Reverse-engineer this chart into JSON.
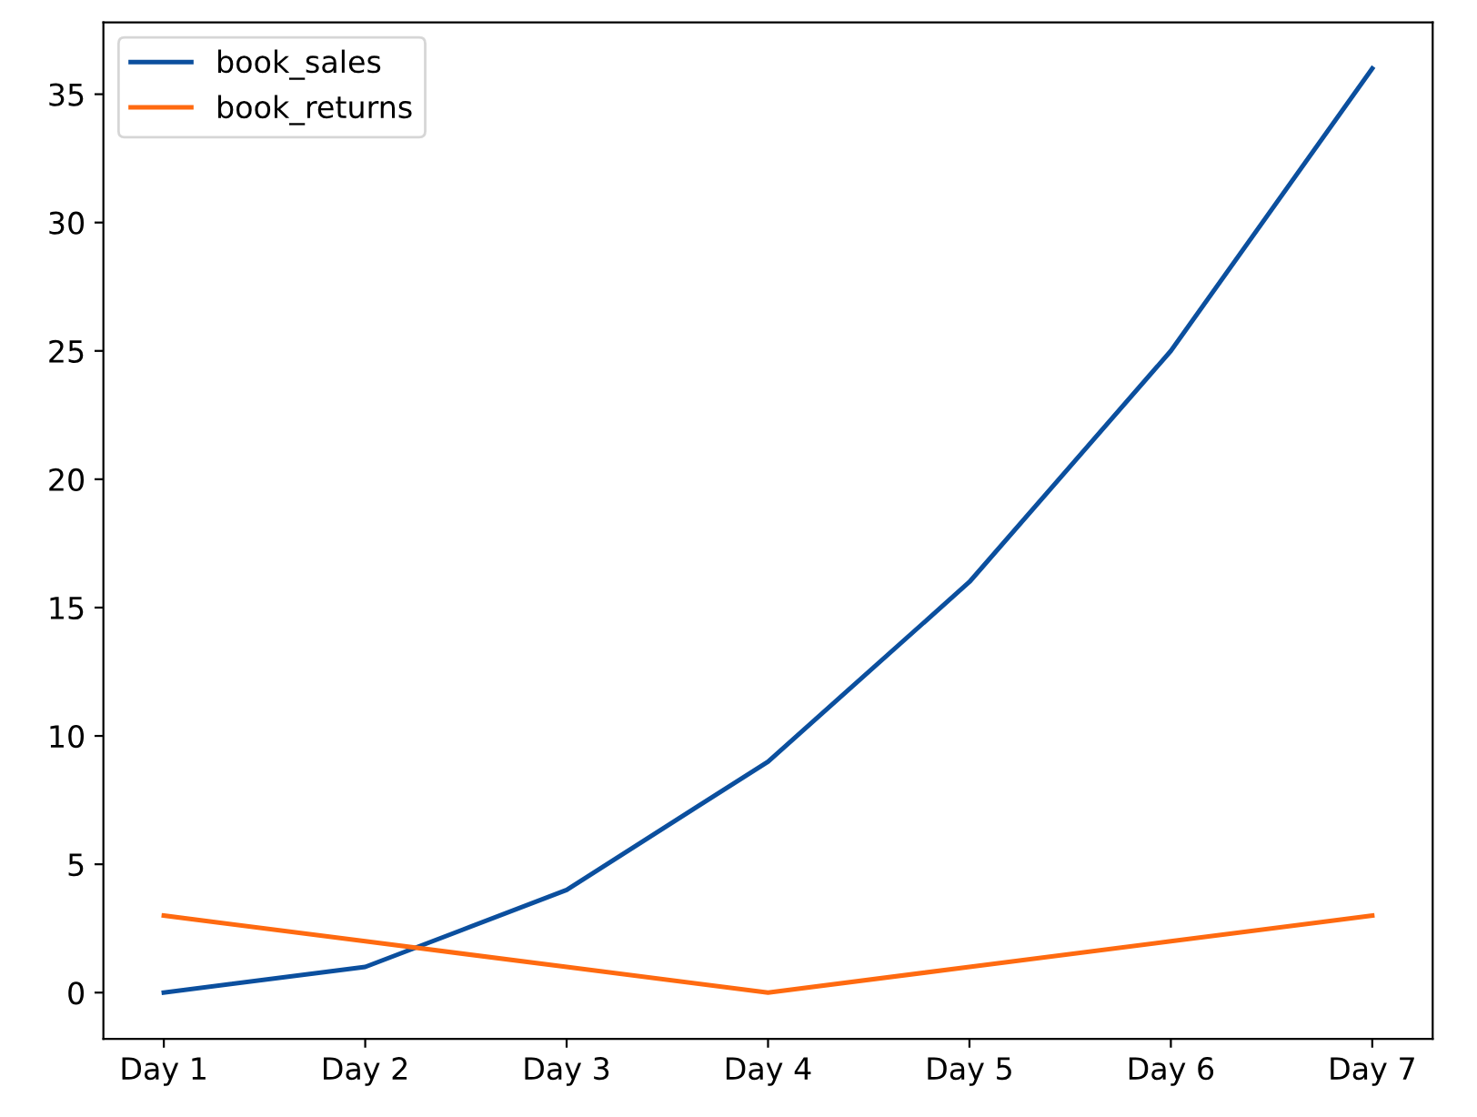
{
  "chart_data": {
    "type": "line",
    "categories": [
      "Day 1",
      "Day 2",
      "Day 3",
      "Day 4",
      "Day 5",
      "Day 6",
      "Day 7"
    ],
    "series": [
      {
        "name": "book_sales",
        "color": "#0b4f9e",
        "values": [
          0,
          1,
          4,
          9,
          16,
          25,
          36
        ]
      },
      {
        "name": "book_returns",
        "color": "#ff6a10",
        "values": [
          3,
          2,
          1,
          0,
          1,
          2,
          3
        ]
      }
    ],
    "ylim": [
      -1.8,
      37.8
    ],
    "yticks": [
      0,
      5,
      10,
      15,
      20,
      25,
      30,
      35
    ],
    "legend": "top left",
    "grid": false,
    "marker": "none",
    "line_style": "solid"
  }
}
